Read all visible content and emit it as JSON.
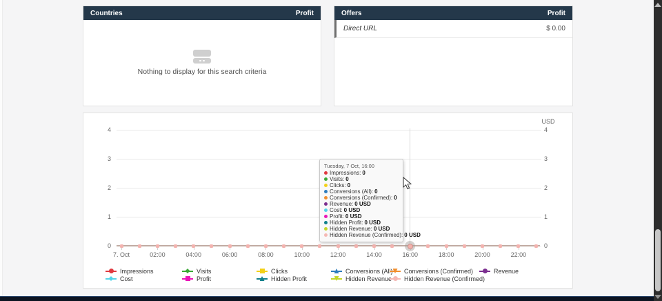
{
  "panels": {
    "countries": {
      "title": "Countries",
      "profit_label": "Profit",
      "empty_text": "Nothing to display for this search criteria"
    },
    "offers": {
      "title": "Offers",
      "profit_label": "Profit",
      "rows": [
        {
          "name": "Direct URL",
          "value": "$ 0.00"
        }
      ]
    }
  },
  "chart": {
    "unit_label": "USD",
    "y_ticks": [
      "4",
      "3",
      "2",
      "1",
      "0"
    ],
    "x_ticks": [
      "7. Oct",
      "02:00",
      "04:00",
      "06:00",
      "08:00",
      "10:00",
      "12:00",
      "14:00",
      "16:00",
      "18:00",
      "20:00",
      "22:00"
    ],
    "tooltip": {
      "header": "Tuesday, 7 Oct, 16:00",
      "rows": [
        {
          "label": "Impressions:",
          "value": "0",
          "color": "#e0393f"
        },
        {
          "label": "Visits:",
          "value": "0",
          "color": "#39a935"
        },
        {
          "label": "Clicks:",
          "value": "0",
          "color": "#f3d018"
        },
        {
          "label": "Conversions (All):",
          "value": "0",
          "color": "#2e7dbe"
        },
        {
          "label": "Conversions (Confirmed):",
          "value": "0",
          "color": "#f18f2f"
        },
        {
          "label": "Revenue:",
          "value": "0 USD",
          "color": "#7b2e8f"
        },
        {
          "label": "Cost:",
          "value": "0 USD",
          "color": "#52d5e9"
        },
        {
          "label": "Profit:",
          "value": "0 USD",
          "color": "#ea16b8"
        },
        {
          "label": "Hidden Profit:",
          "value": "0 USD",
          "color": "#10808b"
        },
        {
          "label": "Hidden Revenue:",
          "value": "0 USD",
          "color": "#c4d62b"
        },
        {
          "label": "Hidden Revenue (Confirmed):",
          "value": "0 USD",
          "color": "#f5b8b4"
        }
      ]
    },
    "legend": {
      "items": [
        {
          "label": "Impressions",
          "color": "#e0393f",
          "marker": "circle"
        },
        {
          "label": "Visits",
          "color": "#39a935",
          "marker": "diamond"
        },
        {
          "label": "Clicks",
          "color": "#f3d018",
          "marker": "square"
        },
        {
          "label": "Conversions (All)",
          "color": "#2e7dbe",
          "marker": "triangle"
        },
        {
          "label": "Conversions (Confirmed)",
          "color": "#f18f2f",
          "marker": "triangle-down"
        },
        {
          "label": "Revenue",
          "color": "#7b2e8f",
          "marker": "circle"
        },
        {
          "label": "Cost",
          "color": "#52d5e9",
          "marker": "diamond"
        },
        {
          "label": "Profit",
          "color": "#ea16b8",
          "marker": "square"
        },
        {
          "label": "Hidden Profit",
          "color": "#10808b",
          "marker": "triangle"
        },
        {
          "label": "Hidden Revenue",
          "color": "#c4d62b",
          "marker": "triangle-down"
        },
        {
          "label": "Hidden Revenue (Confirmed)",
          "color": "#f5b8b4",
          "marker": "circle"
        }
      ]
    }
  },
  "chart_data": {
    "type": "line",
    "title": "",
    "right_axis_title": "USD",
    "ylim": [
      0,
      4
    ],
    "y_tick_values": [
      0,
      1,
      2,
      3,
      4
    ],
    "x_tick_labels": [
      "7. Oct",
      "02:00",
      "04:00",
      "06:00",
      "08:00",
      "10:00",
      "12:00",
      "14:00",
      "16:00",
      "18:00",
      "20:00",
      "22:00"
    ],
    "x_hours": [
      "00:00",
      "01:00",
      "02:00",
      "03:00",
      "04:00",
      "05:00",
      "06:00",
      "07:00",
      "08:00",
      "09:00",
      "10:00",
      "11:00",
      "12:00",
      "13:00",
      "14:00",
      "15:00",
      "16:00",
      "17:00",
      "18:00",
      "19:00",
      "20:00",
      "21:00",
      "22:00",
      "23:00"
    ],
    "grid": true,
    "legend_position": "bottom",
    "hovered_point": {
      "x": "16:00",
      "date": "Tuesday, 7 Oct"
    },
    "series": [
      {
        "name": "Impressions",
        "color": "#e0393f",
        "marker": "circle",
        "values": [
          0,
          0,
          0,
          0,
          0,
          0,
          0,
          0,
          0,
          0,
          0,
          0,
          0,
          0,
          0,
          0,
          0,
          0,
          0,
          0,
          0,
          0,
          0,
          0
        ]
      },
      {
        "name": "Visits",
        "color": "#39a935",
        "marker": "diamond",
        "values": [
          0,
          0,
          0,
          0,
          0,
          0,
          0,
          0,
          0,
          0,
          0,
          0,
          0,
          0,
          0,
          0,
          0,
          0,
          0,
          0,
          0,
          0,
          0,
          0
        ]
      },
      {
        "name": "Clicks",
        "color": "#f3d018",
        "marker": "square",
        "values": [
          0,
          0,
          0,
          0,
          0,
          0,
          0,
          0,
          0,
          0,
          0,
          0,
          0,
          0,
          0,
          0,
          0,
          0,
          0,
          0,
          0,
          0,
          0,
          0
        ]
      },
      {
        "name": "Conversions (All)",
        "color": "#2e7dbe",
        "marker": "triangle",
        "values": [
          0,
          0,
          0,
          0,
          0,
          0,
          0,
          0,
          0,
          0,
          0,
          0,
          0,
          0,
          0,
          0,
          0,
          0,
          0,
          0,
          0,
          0,
          0,
          0
        ]
      },
      {
        "name": "Conversions (Confirmed)",
        "color": "#f18f2f",
        "marker": "triangle-down",
        "values": [
          0,
          0,
          0,
          0,
          0,
          0,
          0,
          0,
          0,
          0,
          0,
          0,
          0,
          0,
          0,
          0,
          0,
          0,
          0,
          0,
          0,
          0,
          0,
          0
        ]
      },
      {
        "name": "Revenue",
        "color": "#7b2e8f",
        "marker": "circle",
        "values": [
          0,
          0,
          0,
          0,
          0,
          0,
          0,
          0,
          0,
          0,
          0,
          0,
          0,
          0,
          0,
          0,
          0,
          0,
          0,
          0,
          0,
          0,
          0,
          0
        ]
      },
      {
        "name": "Cost",
        "color": "#52d5e9",
        "marker": "diamond",
        "values": [
          0,
          0,
          0,
          0,
          0,
          0,
          0,
          0,
          0,
          0,
          0,
          0,
          0,
          0,
          0,
          0,
          0,
          0,
          0,
          0,
          0,
          0,
          0,
          0
        ]
      },
      {
        "name": "Profit",
        "color": "#ea16b8",
        "marker": "square",
        "values": [
          0,
          0,
          0,
          0,
          0,
          0,
          0,
          0,
          0,
          0,
          0,
          0,
          0,
          0,
          0,
          0,
          0,
          0,
          0,
          0,
          0,
          0,
          0,
          0
        ]
      },
      {
        "name": "Hidden Profit",
        "color": "#10808b",
        "marker": "triangle",
        "values": [
          0,
          0,
          0,
          0,
          0,
          0,
          0,
          0,
          0,
          0,
          0,
          0,
          0,
          0,
          0,
          0,
          0,
          0,
          0,
          0,
          0,
          0,
          0,
          0
        ]
      },
      {
        "name": "Hidden Revenue",
        "color": "#c4d62b",
        "marker": "triangle-down",
        "values": [
          0,
          0,
          0,
          0,
          0,
          0,
          0,
          0,
          0,
          0,
          0,
          0,
          0,
          0,
          0,
          0,
          0,
          0,
          0,
          0,
          0,
          0,
          0,
          0
        ]
      },
      {
        "name": "Hidden Revenue (Confirmed)",
        "color": "#f5b8b4",
        "marker": "circle",
        "values": [
          0,
          0,
          0,
          0,
          0,
          0,
          0,
          0,
          0,
          0,
          0,
          0,
          0,
          0,
          0,
          0,
          0,
          0,
          0,
          0,
          0,
          0,
          0,
          0
        ]
      }
    ]
  }
}
